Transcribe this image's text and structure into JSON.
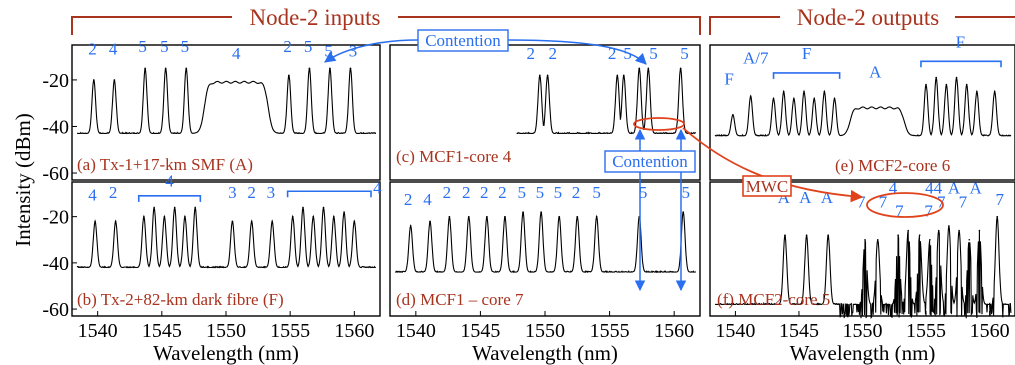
{
  "group_labels": {
    "inputs": "Node-2 inputs",
    "outputs": "Node-2 outputs"
  },
  "callouts": {
    "contention_1": "Contention",
    "contention_2": "Contention",
    "mwc": "MWC"
  },
  "colors": {
    "trace": "#000000",
    "panel_label": "#a8331e",
    "annotation": "#2a6ff0",
    "group_bracket": "#a8331e",
    "mwc": "#e0431c"
  },
  "chart_data": [
    {
      "id": "a",
      "type": "line",
      "title": "(a) Tx-1+17-km SMF (A)",
      "xlim": [
        1538,
        1562
      ],
      "ylim": [
        -63,
        -5
      ],
      "ylabel": "Intensity (dBm)",
      "xlabel": "",
      "xticks": [],
      "yticks": [
        "-20",
        "-40",
        "-60"
      ],
      "ytick_values": [
        -20,
        -40,
        -60
      ],
      "floor": -43,
      "peaks": [
        {
          "x": 1539.7,
          "y": -20
        },
        {
          "x": 1541.3,
          "y": -20
        },
        {
          "x": 1543.7,
          "y": -15
        },
        {
          "x": 1545.3,
          "y": -15
        },
        {
          "x": 1546.9,
          "y": -15
        },
        {
          "x": 1554.9,
          "y": -18
        },
        {
          "x": 1556.5,
          "y": -15
        },
        {
          "x": 1558.1,
          "y": -15
        },
        {
          "x": 1559.7,
          "y": -15
        }
      ],
      "plateaus": [
        {
          "x1": 1548.3,
          "x2": 1553.3,
          "y": -21
        }
      ],
      "labels": [
        {
          "text": "2",
          "x": 1539.6,
          "y": -9
        },
        {
          "text": "4",
          "x": 1541.2,
          "y": -9
        },
        {
          "text": "5",
          "x": 1543.5,
          "y": -8
        },
        {
          "text": "5",
          "x": 1545.2,
          "y": -8
        },
        {
          "text": "5",
          "x": 1546.8,
          "y": -8
        },
        {
          "text": "4",
          "x": 1550.8,
          "y": -11
        },
        {
          "text": "2",
          "x": 1554.8,
          "y": -8
        },
        {
          "text": "5",
          "x": 1556.4,
          "y": -8
        },
        {
          "text": "5",
          "x": 1558.0,
          "y": -10
        },
        {
          "text": "3",
          "x": 1559.9,
          "y": -10
        }
      ]
    },
    {
      "id": "b",
      "type": "line",
      "title": "(b) Tx-2+82-km dark fibre (F)",
      "xlim": [
        1538,
        1562
      ],
      "ylim": [
        -63,
        -5
      ],
      "ylabel": "Intensity (dBm)",
      "xlabel": "Wavelength (nm)",
      "xticks": [
        "1540",
        "1545",
        "1550",
        "1555",
        "1560"
      ],
      "xtick_values": [
        1540,
        1545,
        1550,
        1555,
        1560
      ],
      "yticks": [
        "-20",
        "-40",
        "-60"
      ],
      "ytick_values": [
        -20,
        -40,
        -60
      ],
      "floor": -42,
      "peaks": [
        {
          "x": 1539.8,
          "y": -22
        },
        {
          "x": 1541.4,
          "y": -22
        },
        {
          "x": 1543.6,
          "y": -20
        },
        {
          "x": 1544.4,
          "y": -16
        },
        {
          "x": 1545.2,
          "y": -20
        },
        {
          "x": 1546.0,
          "y": -16
        },
        {
          "x": 1546.8,
          "y": -20
        },
        {
          "x": 1547.6,
          "y": -16
        },
        {
          "x": 1550.5,
          "y": -22
        },
        {
          "x": 1552.0,
          "y": -22
        },
        {
          "x": 1553.6,
          "y": -22
        },
        {
          "x": 1555.2,
          "y": -20
        },
        {
          "x": 1556.0,
          "y": -16
        },
        {
          "x": 1556.8,
          "y": -20
        },
        {
          "x": 1557.6,
          "y": -16
        },
        {
          "x": 1558.4,
          "y": -20
        },
        {
          "x": 1559.2,
          "y": -18
        },
        {
          "x": 1560.0,
          "y": -22
        }
      ],
      "plateaus": [],
      "labels": [
        {
          "text": "4",
          "x": 1539.6,
          "y": -13
        },
        {
          "text": "2",
          "x": 1541.2,
          "y": -12
        },
        {
          "text": "4",
          "x": 1545.6,
          "y": -7
        },
        {
          "text": "3",
          "x": 1550.5,
          "y": -12
        },
        {
          "text": "2",
          "x": 1552.0,
          "y": -12
        },
        {
          "text": "3",
          "x": 1553.5,
          "y": -12
        },
        {
          "text": "4",
          "x": 1561.8,
          "y": -10
        }
      ],
      "brackets": [
        {
          "x1": 1543.2,
          "x2": 1548.0,
          "y": -11
        },
        {
          "x1": 1554.8,
          "x2": 1561.3,
          "y": -9
        }
      ]
    },
    {
      "id": "c",
      "type": "line",
      "title": "(c) MCF1-core 4",
      "xlim": [
        1538,
        1562
      ],
      "ylim": [
        -63,
        -5
      ],
      "xlabel": "",
      "xticks": [],
      "yticks": [],
      "floor": -43,
      "floor_start": 1547.8,
      "peaks": [
        {
          "x": 1549.6,
          "y": -18
        },
        {
          "x": 1550.2,
          "y": -18
        },
        {
          "x": 1555.6,
          "y": -18
        },
        {
          "x": 1556.1,
          "y": -18
        },
        {
          "x": 1557.3,
          "y": -15
        },
        {
          "x": 1558.0,
          "y": -15
        },
        {
          "x": 1560.5,
          "y": -15
        }
      ],
      "plateaus": [],
      "labels": [
        {
          "text": "2",
          "x": 1548.9,
          "y": -11
        },
        {
          "text": "2",
          "x": 1550.6,
          "y": -11
        },
        {
          "text": "2",
          "x": 1555.2,
          "y": -11
        },
        {
          "text": "5",
          "x": 1556.4,
          "y": -11
        },
        {
          "text": "5",
          "x": 1558.4,
          "y": -11
        },
        {
          "text": "5",
          "x": 1560.8,
          "y": -11
        }
      ]
    },
    {
      "id": "d",
      "type": "line",
      "title": "(d) MCF1 – core 7",
      "xlim": [
        1538,
        1562
      ],
      "ylim": [
        -63,
        -5
      ],
      "xlabel": "Wavelength (nm)",
      "xticks": [
        "1540",
        "1545",
        "1550",
        "1555",
        "1560"
      ],
      "xtick_values": [
        1540,
        1545,
        1550,
        1555,
        1560
      ],
      "yticks": [],
      "floor": -44,
      "peaks": [
        {
          "x": 1539.6,
          "y": -24
        },
        {
          "x": 1541.1,
          "y": -22
        },
        {
          "x": 1542.6,
          "y": -20
        },
        {
          "x": 1544.1,
          "y": -20
        },
        {
          "x": 1545.5,
          "y": -20
        },
        {
          "x": 1546.9,
          "y": -20
        },
        {
          "x": 1548.3,
          "y": -18
        },
        {
          "x": 1549.7,
          "y": -18
        },
        {
          "x": 1551.1,
          "y": -20
        },
        {
          "x": 1552.5,
          "y": -20
        },
        {
          "x": 1554.0,
          "y": -20
        },
        {
          "x": 1557.3,
          "y": -20
        },
        {
          "x": 1560.7,
          "y": -18
        }
      ],
      "plateaus": [],
      "labels": [
        {
          "text": "2",
          "x": 1539.4,
          "y": -15
        },
        {
          "text": "4",
          "x": 1540.9,
          "y": -15
        },
        {
          "text": "2",
          "x": 1542.4,
          "y": -12
        },
        {
          "text": "2",
          "x": 1543.9,
          "y": -12
        },
        {
          "text": "2",
          "x": 1545.3,
          "y": -12
        },
        {
          "text": "2",
          "x": 1546.7,
          "y": -12
        },
        {
          "text": "5",
          "x": 1548.2,
          "y": -12
        },
        {
          "text": "5",
          "x": 1549.6,
          "y": -12
        },
        {
          "text": "5",
          "x": 1551.0,
          "y": -12
        },
        {
          "text": "2",
          "x": 1552.4,
          "y": -12
        },
        {
          "text": "5",
          "x": 1554.0,
          "y": -12
        },
        {
          "text": "5",
          "x": 1557.6,
          "y": -12
        },
        {
          "text": "5",
          "x": 1560.9,
          "y": -12
        }
      ]
    },
    {
      "id": "e",
      "type": "line",
      "title": "(e) MCF2-core 6",
      "xlim": [
        1538,
        1562
      ],
      "ylim": [
        -63,
        -5
      ],
      "xlabel": "",
      "xticks": [],
      "yticks": [],
      "floor": -44,
      "peaks": [
        {
          "x": 1539.8,
          "y": -35
        },
        {
          "x": 1541.2,
          "y": -27
        },
        {
          "x": 1543.0,
          "y": -28
        },
        {
          "x": 1543.8,
          "y": -25
        },
        {
          "x": 1544.6,
          "y": -28
        },
        {
          "x": 1545.4,
          "y": -25
        },
        {
          "x": 1546.2,
          "y": -28
        },
        {
          "x": 1547.0,
          "y": -25
        },
        {
          "x": 1547.8,
          "y": -28
        },
        {
          "x": 1555.0,
          "y": -22
        },
        {
          "x": 1555.8,
          "y": -19
        },
        {
          "x": 1556.6,
          "y": -22
        },
        {
          "x": 1557.4,
          "y": -19
        },
        {
          "x": 1558.2,
          "y": -22
        },
        {
          "x": 1559.0,
          "y": -25
        },
        {
          "x": 1560.4,
          "y": -25
        }
      ],
      "plateaus": [
        {
          "x1": 1549.0,
          "x2": 1553.3,
          "y": -32
        }
      ],
      "labels": [
        {
          "text": "F",
          "x": 1539.5,
          "y": -22
        },
        {
          "text": "A/7",
          "x": 1541.6,
          "y": -13
        },
        {
          "text": "F",
          "x": 1545.6,
          "y": -11
        },
        {
          "text": "A",
          "x": 1551.0,
          "y": -19
        },
        {
          "text": "F",
          "x": 1557.7,
          "y": -6
        }
      ],
      "brackets": [
        {
          "x1": 1543.0,
          "x2": 1548.2,
          "y": -17
        },
        {
          "x1": 1554.6,
          "x2": 1560.9,
          "y": -12
        }
      ]
    },
    {
      "id": "f",
      "type": "line",
      "title": "(f) MCF2-core 5",
      "xlim": [
        1538,
        1562
      ],
      "ylim": [
        -63,
        -5
      ],
      "xlabel": "Wavelength (nm)",
      "xticks": [
        "1540",
        "1545",
        "1550",
        "1555",
        "1560"
      ],
      "xtick_values": [
        1540,
        1545,
        1550,
        1555,
        1560
      ],
      "yticks": [],
      "floor": -58,
      "peaks": [
        {
          "x": 1543.9,
          "y": -28
        },
        {
          "x": 1545.6,
          "y": -28
        },
        {
          "x": 1547.3,
          "y": -28
        },
        {
          "x": 1550.2,
          "y": -30
        },
        {
          "x": 1551.2,
          "y": -30
        },
        {
          "x": 1552.8,
          "y": -28
        },
        {
          "x": 1553.6,
          "y": -26
        },
        {
          "x": 1554.5,
          "y": -28
        },
        {
          "x": 1555.3,
          "y": -30
        },
        {
          "x": 1556.0,
          "y": -26
        },
        {
          "x": 1556.8,
          "y": -24
        },
        {
          "x": 1557.6,
          "y": -26
        },
        {
          "x": 1558.4,
          "y": -30
        },
        {
          "x": 1559.2,
          "y": -26
        },
        {
          "x": 1560.6,
          "y": -20
        }
      ],
      "plateaus": [],
      "labels": [
        {
          "text": "A",
          "x": 1543.8,
          "y": -14
        },
        {
          "text": "A",
          "x": 1545.5,
          "y": -14
        },
        {
          "text": "A",
          "x": 1547.2,
          "y": -14
        },
        {
          "text": "7",
          "x": 1549.9,
          "y": -16
        },
        {
          "text": "7",
          "x": 1551.6,
          "y": -16
        },
        {
          "text": "7",
          "x": 1552.9,
          "y": -20
        },
        {
          "text": "4",
          "x": 1552.4,
          "y": -10
        },
        {
          "text": "44",
          "x": 1555.6,
          "y": -10
        },
        {
          "text": "7",
          "x": 1555.2,
          "y": -20
        },
        {
          "text": "7",
          "x": 1556.2,
          "y": -16
        },
        {
          "text": "A",
          "x": 1557.2,
          "y": -10
        },
        {
          "text": "A",
          "x": 1558.9,
          "y": -10
        },
        {
          "text": "7",
          "x": 1557.9,
          "y": -16
        },
        {
          "text": "7",
          "x": 1560.8,
          "y": -15
        }
      ]
    }
  ]
}
